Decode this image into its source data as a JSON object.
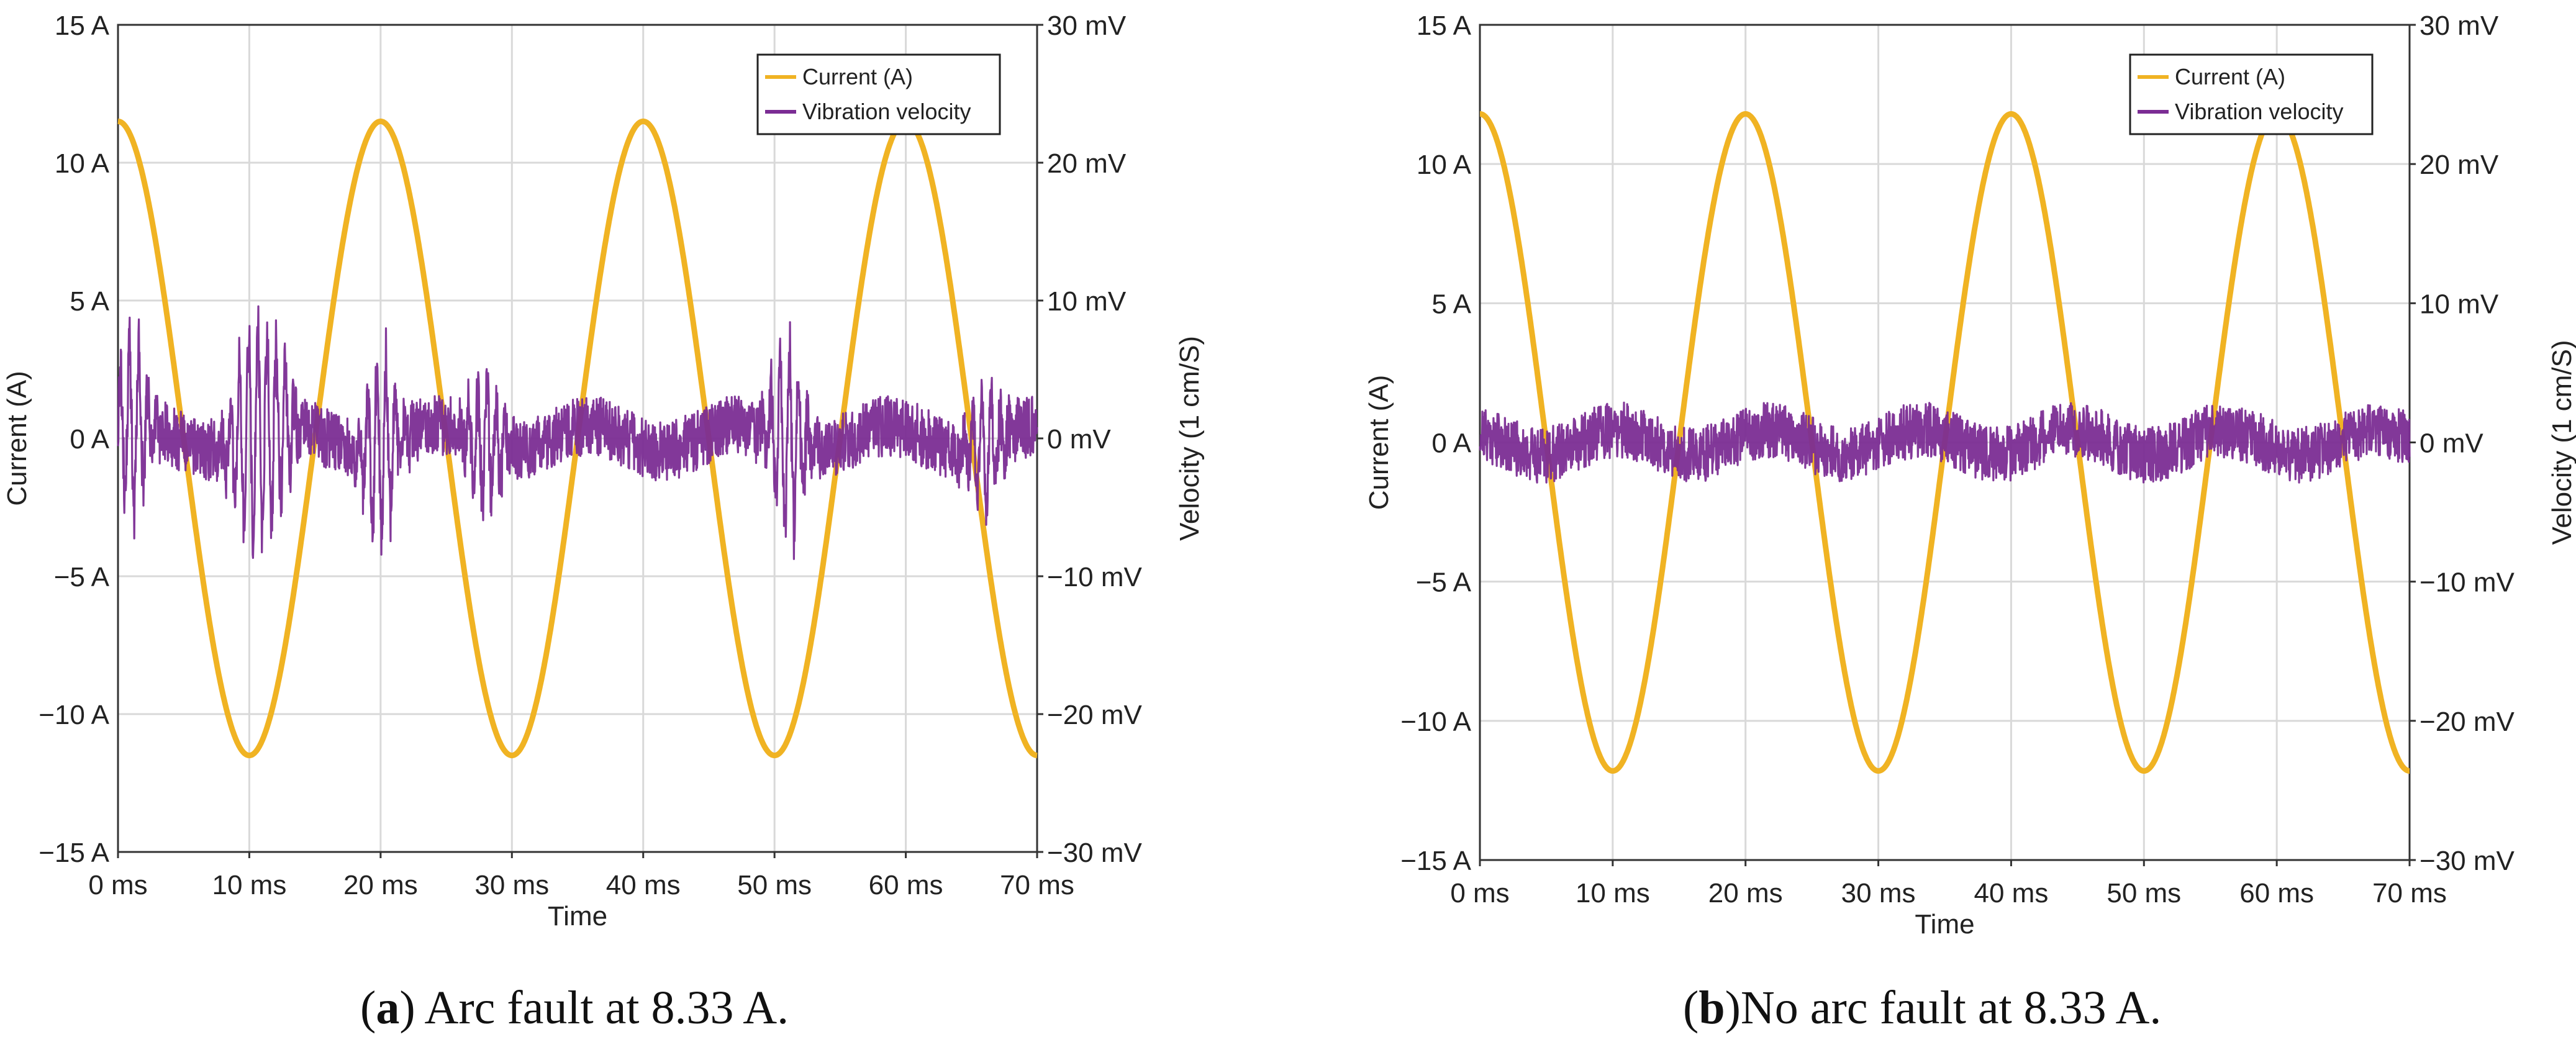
{
  "chart_data": [
    {
      "type": "line",
      "panel_letter": "a",
      "caption": "Arc fault at 8.33 A.",
      "xlabel": "Time",
      "ylabel": "Current (A)",
      "y2label": "Velocity (1 cm/S)",
      "xlim": [
        0,
        70
      ],
      "ylim": [
        -15,
        15
      ],
      "y2lim": [
        -30,
        30
      ],
      "xticks": [
        "0 ms",
        "10 ms",
        "20 ms",
        "30 ms",
        "40 ms",
        "50 ms",
        "60 ms",
        "70 ms"
      ],
      "yticks": [
        "−15 A",
        "−10 A",
        "−5 A",
        "0 A",
        "5 A",
        "10 A",
        "15 A"
      ],
      "y2ticks": [
        "−30 mV",
        "−20 mV",
        "−10 mV",
        "0 mV",
        "10 mV",
        "20 mV",
        "30 mV"
      ],
      "grid": true,
      "legend_position": "top-right",
      "series": [
        {
          "name": "Current (A)",
          "axis": "left",
          "color": "#F0B323",
          "amplitude": 11.5,
          "period_ms": 20,
          "x": [
            0,
            5,
            10,
            15,
            20,
            25,
            30,
            35,
            40,
            45,
            50,
            55,
            60,
            65,
            70
          ],
          "values": [
            11.5,
            0,
            -11.5,
            0,
            11.5,
            0,
            -11.5,
            0,
            11.5,
            0,
            -11.5,
            0,
            11.5,
            0,
            -11.5
          ]
        },
        {
          "name": "Vibration velocity",
          "axis": "right",
          "color": "#7B2D94",
          "noise_mV": 2.2,
          "burst_x_ms": [
            1,
            10,
            12,
            20,
            28,
            51,
            66
          ],
          "burst_mV": [
            7,
            8,
            6,
            7,
            5,
            8,
            4
          ]
        }
      ]
    },
    {
      "type": "line",
      "panel_letter": "b",
      "caption": "No arc fault at 8.33 A.",
      "xlabel": "Time",
      "ylabel": "Current (A)",
      "y2label": "Velocity (1 cm/S)",
      "xlim": [
        0,
        70
      ],
      "ylim": [
        -15,
        15
      ],
      "y2lim": [
        -30,
        30
      ],
      "xticks": [
        "0 ms",
        "10 ms",
        "20 ms",
        "30 ms",
        "40 ms",
        "50 ms",
        "60 ms",
        "70 ms"
      ],
      "yticks": [
        "−15 A",
        "−10 A",
        "−5 A",
        "0 A",
        "5 A",
        "10 A",
        "15 A"
      ],
      "y2ticks": [
        "−30 mV",
        "−20 mV",
        "−10 mV",
        "0 mV",
        "10 mV",
        "20 mV",
        "30 mV"
      ],
      "grid": true,
      "legend_position": "top-right",
      "series": [
        {
          "name": "Current (A)",
          "axis": "left",
          "color": "#F0B323",
          "amplitude": 11.8,
          "period_ms": 20,
          "x": [
            0,
            5,
            10,
            15,
            20,
            25,
            30,
            35,
            40,
            45,
            50,
            55,
            60,
            65,
            70
          ],
          "values": [
            11.8,
            0,
            -11.8,
            0,
            11.8,
            0,
            -11.8,
            0,
            11.8,
            0,
            -11.8,
            0,
            11.8,
            0,
            -11.8
          ]
        },
        {
          "name": "Vibration velocity",
          "axis": "right",
          "color": "#7B2D94",
          "noise_mV": 2.0,
          "burst_x_ms": [],
          "burst_mV": []
        }
      ]
    }
  ]
}
